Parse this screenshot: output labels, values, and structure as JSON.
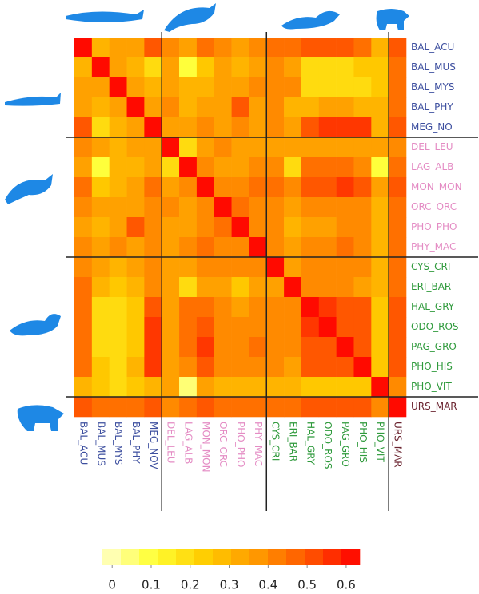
{
  "chart_data": {
    "type": "heatmap",
    "row_labels": [
      "BAL_ACU",
      "BAL_MUS",
      "BAL_MYS",
      "BAL_PHY",
      "MEG_NO",
      "DEL_LEU",
      "LAG_ALB",
      "MON_MON",
      "ORC_ORC",
      "PHO_PHO",
      "PHY_MAC",
      "CYS_CRI",
      "ERI_BAR",
      "HAL_GRY",
      "ODO_ROS",
      "PAG_GRO",
      "PHO_HIS",
      "PHO_VIT",
      "URS_MAR"
    ],
    "col_labels": [
      "BAL_ACU",
      "BAL_MUS",
      "BAL_MYS",
      "BAL_PHY",
      "MEG_NOV",
      "DEL_LEU",
      "LAG_ALB",
      "MON_MON",
      "ORC_ORC",
      "PHO_PHO",
      "PHY_MAC",
      "CYS_CRI",
      "ERI_BAR",
      "HAL_GRY",
      "ODO_ROS",
      "PAG_GRO",
      "PHO_HIS",
      "PHO_VIT",
      "URS_MAR"
    ],
    "label_colors": [
      "#3d4f9f",
      "#3d4f9f",
      "#3d4f9f",
      "#3d4f9f",
      "#3d4f9f",
      "#e48cc4",
      "#e48cc4",
      "#e48cc4",
      "#e48cc4",
      "#e48cc4",
      "#e48cc4",
      "#2f9a3c",
      "#2f9a3c",
      "#2f9a3c",
      "#2f9a3c",
      "#2f9a3c",
      "#2f9a3c",
      "#2f9a3c",
      "#6b2430"
    ],
    "values": [
      [
        0.62,
        0.3,
        0.35,
        0.35,
        0.5,
        0.4,
        0.35,
        0.45,
        0.4,
        0.35,
        0.4,
        0.45,
        0.45,
        0.5,
        0.5,
        0.5,
        0.45,
        0.3,
        0.5
      ],
      [
        0.3,
        0.62,
        0.35,
        0.3,
        0.2,
        0.35,
        0.1,
        0.25,
        0.35,
        0.3,
        0.35,
        0.4,
        0.35,
        0.2,
        0.2,
        0.2,
        0.25,
        0.25,
        0.45
      ],
      [
        0.35,
        0.35,
        0.62,
        0.35,
        0.3,
        0.35,
        0.3,
        0.3,
        0.35,
        0.35,
        0.4,
        0.4,
        0.4,
        0.2,
        0.2,
        0.2,
        0.2,
        0.25,
        0.45
      ],
      [
        0.35,
        0.3,
        0.35,
        0.62,
        0.35,
        0.4,
        0.3,
        0.35,
        0.35,
        0.5,
        0.35,
        0.4,
        0.3,
        0.3,
        0.35,
        0.35,
        0.3,
        0.3,
        0.45
      ],
      [
        0.5,
        0.2,
        0.3,
        0.35,
        0.62,
        0.35,
        0.35,
        0.4,
        0.35,
        0.4,
        0.35,
        0.4,
        0.35,
        0.5,
        0.55,
        0.55,
        0.55,
        0.3,
        0.5
      ],
      [
        0.4,
        0.35,
        0.3,
        0.35,
        0.35,
        0.62,
        0.2,
        0.35,
        0.4,
        0.35,
        0.35,
        0.35,
        0.35,
        0.35,
        0.35,
        0.35,
        0.35,
        0.35,
        0.4
      ],
      [
        0.35,
        0.1,
        0.3,
        0.3,
        0.35,
        0.2,
        0.62,
        0.4,
        0.35,
        0.35,
        0.4,
        0.4,
        0.2,
        0.45,
        0.45,
        0.45,
        0.4,
        0.1,
        0.45
      ],
      [
        0.45,
        0.25,
        0.3,
        0.35,
        0.45,
        0.35,
        0.4,
        0.62,
        0.4,
        0.4,
        0.45,
        0.45,
        0.4,
        0.5,
        0.5,
        0.55,
        0.5,
        0.35,
        0.5
      ],
      [
        0.4,
        0.35,
        0.35,
        0.35,
        0.4,
        0.4,
        0.35,
        0.4,
        0.62,
        0.45,
        0.4,
        0.4,
        0.35,
        0.4,
        0.4,
        0.4,
        0.4,
        0.3,
        0.45
      ],
      [
        0.35,
        0.3,
        0.35,
        0.5,
        0.4,
        0.35,
        0.35,
        0.4,
        0.45,
        0.62,
        0.4,
        0.4,
        0.3,
        0.35,
        0.35,
        0.4,
        0.4,
        0.3,
        0.45
      ],
      [
        0.4,
        0.35,
        0.4,
        0.35,
        0.4,
        0.35,
        0.4,
        0.45,
        0.4,
        0.4,
        0.62,
        0.4,
        0.35,
        0.4,
        0.4,
        0.45,
        0.4,
        0.3,
        0.45
      ],
      [
        0.4,
        0.35,
        0.3,
        0.35,
        0.4,
        0.35,
        0.35,
        0.4,
        0.4,
        0.4,
        0.4,
        0.62,
        0.35,
        0.4,
        0.4,
        0.4,
        0.4,
        0.3,
        0.45
      ],
      [
        0.45,
        0.3,
        0.25,
        0.3,
        0.4,
        0.35,
        0.2,
        0.35,
        0.35,
        0.25,
        0.35,
        0.35,
        0.62,
        0.4,
        0.4,
        0.4,
        0.35,
        0.3,
        0.45
      ],
      [
        0.45,
        0.2,
        0.2,
        0.25,
        0.5,
        0.35,
        0.45,
        0.45,
        0.4,
        0.35,
        0.4,
        0.4,
        0.4,
        0.62,
        0.55,
        0.5,
        0.5,
        0.25,
        0.5
      ],
      [
        0.45,
        0.2,
        0.2,
        0.25,
        0.55,
        0.35,
        0.45,
        0.5,
        0.4,
        0.4,
        0.4,
        0.4,
        0.4,
        0.55,
        0.62,
        0.5,
        0.5,
        0.25,
        0.5
      ],
      [
        0.45,
        0.2,
        0.2,
        0.25,
        0.55,
        0.35,
        0.45,
        0.55,
        0.4,
        0.4,
        0.45,
        0.4,
        0.4,
        0.5,
        0.5,
        0.62,
        0.5,
        0.25,
        0.5
      ],
      [
        0.45,
        0.25,
        0.2,
        0.3,
        0.55,
        0.35,
        0.4,
        0.5,
        0.4,
        0.4,
        0.4,
        0.4,
        0.35,
        0.5,
        0.5,
        0.5,
        0.62,
        0.25,
        0.5
      ],
      [
        0.3,
        0.25,
        0.2,
        0.25,
        0.3,
        0.35,
        0.05,
        0.35,
        0.3,
        0.3,
        0.3,
        0.3,
        0.3,
        0.25,
        0.25,
        0.25,
        0.25,
        0.62,
        0.4
      ],
      [
        0.5,
        0.45,
        0.45,
        0.45,
        0.5,
        0.4,
        0.45,
        0.5,
        0.45,
        0.45,
        0.45,
        0.45,
        0.45,
        0.5,
        0.5,
        0.5,
        0.5,
        0.4,
        0.62
      ]
    ],
    "colormap": [
      "#ffffcc",
      "#ffff33",
      "#ffcc00",
      "#ff9900",
      "#ff5500",
      "#ff0000"
    ],
    "clim": [
      -0.025,
      0.635
    ],
    "colorbar_ticks": [
      0,
      0.1,
      0.2,
      0.3,
      0.4,
      0.5,
      0.6
    ]
  }
}
